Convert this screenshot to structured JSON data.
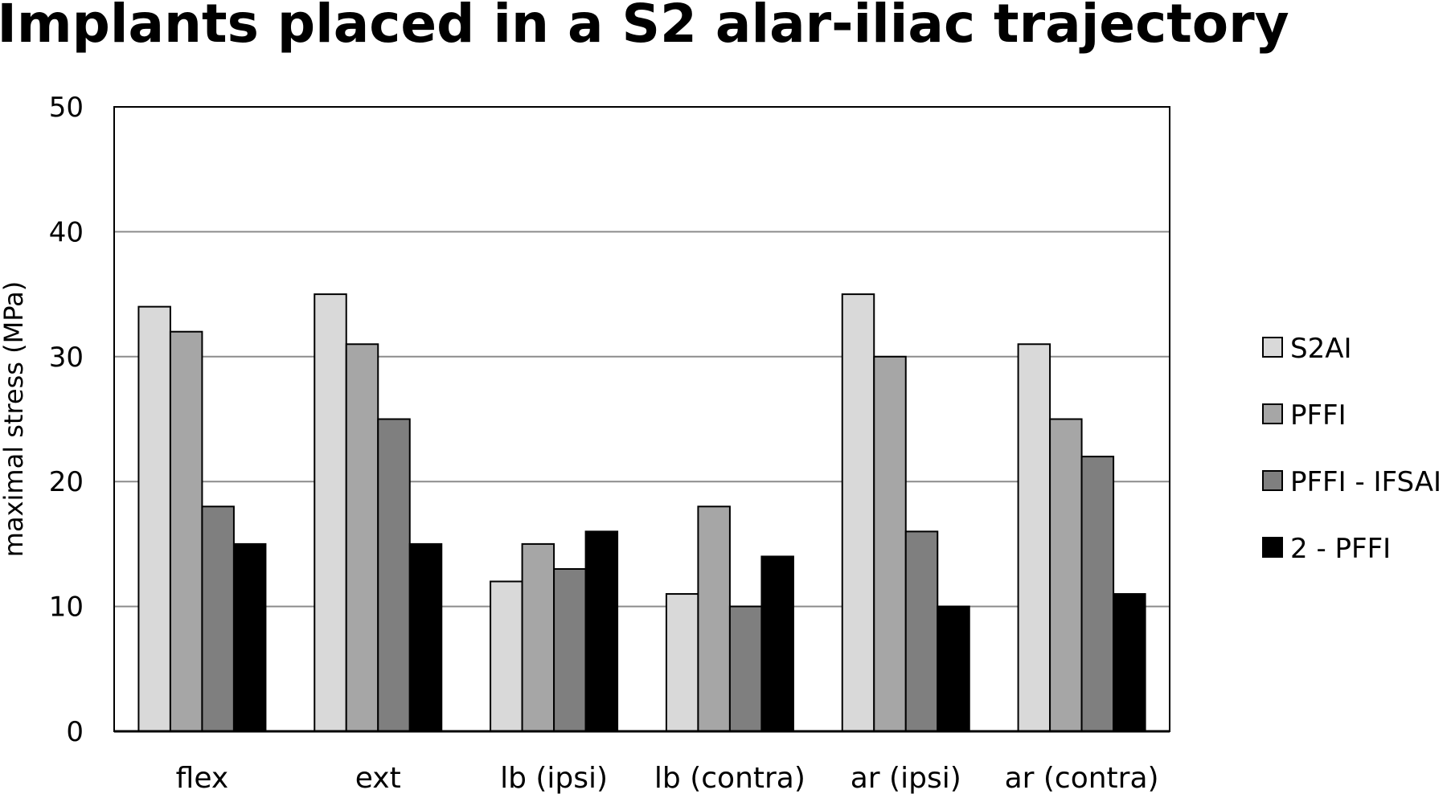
{
  "chart_data": {
    "type": "bar",
    "title": "Implants placed in a S2 alar-iliac trajectory",
    "ylabel": "maximal stress (MPa)",
    "xlabel": "",
    "ylim": [
      0,
      50
    ],
    "yticks": [
      0,
      10,
      20,
      30,
      40,
      50
    ],
    "grid": true,
    "legend_position": "right",
    "categories": [
      "flex",
      "ext",
      "lb (ipsi)",
      "lb (contra)",
      "ar (ipsi)",
      "ar (contra)"
    ],
    "series": [
      {
        "name": "S2AI",
        "color": "#d9d9d9",
        "values": [
          34,
          35,
          12,
          11,
          35,
          31
        ]
      },
      {
        "name": "PFFI",
        "color": "#a6a6a6",
        "values": [
          32,
          31,
          15,
          18,
          30,
          25
        ]
      },
      {
        "name": "PFFI - IFSAI",
        "color": "#7f7f7f",
        "values": [
          18,
          25,
          13,
          10,
          16,
          22
        ]
      },
      {
        "name": "2 - PFFI",
        "color": "#000000",
        "values": [
          15,
          15,
          16,
          14,
          10,
          11
        ]
      }
    ]
  }
}
